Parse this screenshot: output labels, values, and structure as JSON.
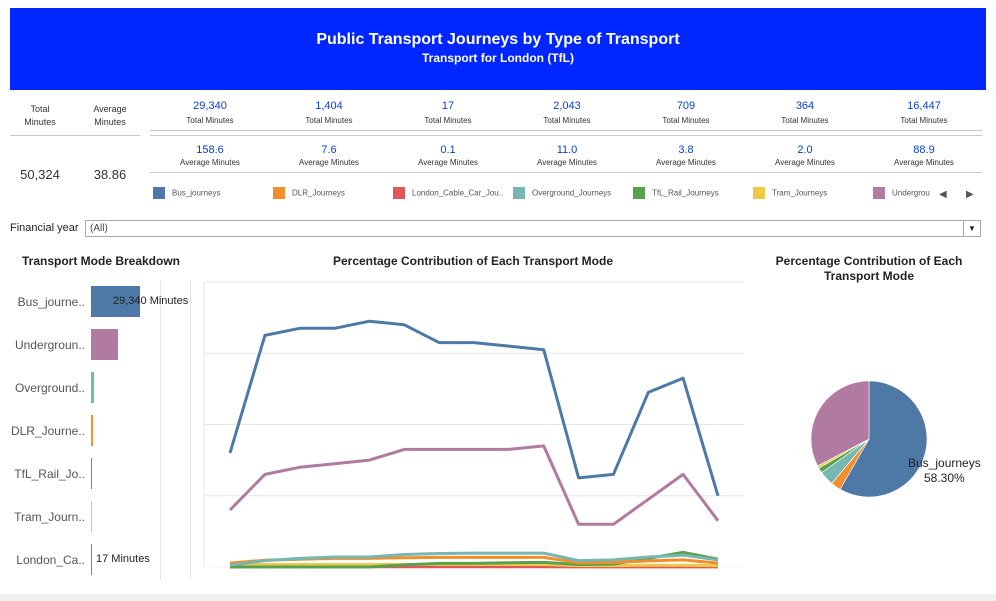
{
  "header": {
    "title": "Public Transport Journeys by Type of Transport",
    "subtitle": "Transport for London (TfL)"
  },
  "summary": {
    "total_label": "Total\nMinutes",
    "total_value": "50,324",
    "average_label": "Average\nMinutes",
    "average_value": "38.86"
  },
  "modes": [
    {
      "name": "Bus_journeys",
      "total": "29,340",
      "average": "158.6",
      "color": "#4e79a7"
    },
    {
      "name": "DLR_Journeys",
      "total": "1,404",
      "average": "7.6",
      "color": "#f28e2b"
    },
    {
      "name": "London_Cable_Car_Jou..",
      "total": "17",
      "average": "0.1",
      "color": "#e15759"
    },
    {
      "name": "Overground_Journeys",
      "total": "2,043",
      "average": "11.0",
      "color": "#76b7b2"
    },
    {
      "name": "TfL_Rail_Journeys",
      "total": "709",
      "average": "3.8",
      "color": "#59a14f"
    },
    {
      "name": "Tram_Journeys",
      "total": "364",
      "average": "2.0",
      "color": "#edc948"
    },
    {
      "name": "Undergrou",
      "total": "16,447",
      "average": "88.9",
      "color": "#b07aa1"
    }
  ],
  "metric_labels": {
    "total": "Total Minutes",
    "average": "Average Minutes"
  },
  "filter": {
    "label": "Financial year",
    "value": "(All)"
  },
  "bar_section": {
    "title": "Transport Mode Breakdown",
    "top_label": "29,340 Minutes",
    "bottom_label": "17 Minutes"
  },
  "line_section": {
    "title": "Percentage Contribution of Each Transport Mode"
  },
  "pie_section": {
    "title_line1": "Percentage Contribution of Each",
    "title_line2": "Transport Mode",
    "label_name": "Bus_journeys",
    "label_pct": "58.30%"
  },
  "chart_data": [
    {
      "type": "bar",
      "title": "Transport Mode Breakdown",
      "categories": [
        "Bus_journe..",
        "Undergroun..",
        "Overground..",
        "DLR_Journe..",
        "TfL_Rail_Jo..",
        "Tram_Journ..",
        "London_Ca.."
      ],
      "values": [
        29340,
        16447,
        2043,
        1404,
        709,
        364,
        17
      ],
      "colors": [
        "#4e79a7",
        "#b07aa1",
        "#76b7b2",
        "#f28e2b",
        "#59a14f",
        "#edc948",
        "#e15759"
      ],
      "data_labels": {
        "Bus_journe..": "29,340 Minutes",
        "London_Ca..": "17 Minutes"
      }
    },
    {
      "type": "line",
      "title": "Percentage Contribution of Each Transport Mode",
      "ylim": [
        0,
        80
      ],
      "grid": true,
      "x_count": 15,
      "series": [
        {
          "name": "Bus_journeys",
          "color": "#4e79a7",
          "values": [
            32,
            65,
            67,
            67,
            69,
            68,
            63,
            63,
            62,
            61,
            25,
            26,
            49,
            53,
            20
          ]
        },
        {
          "name": "Undergrou",
          "color": "#b07aa1",
          "values": [
            16,
            26,
            28,
            29,
            30,
            33,
            33,
            33,
            33,
            34,
            12,
            12,
            19,
            26,
            13
          ]
        },
        {
          "name": "Overground_Journeys",
          "color": "#76b7b2",
          "values": [
            0.5,
            1.8,
            2.4,
            2.8,
            2.8,
            3.5,
            3.8,
            3.9,
            3.9,
            3.9,
            1.8,
            2.0,
            2.8,
            3.3,
            2.0
          ]
        },
        {
          "name": "DLR_Journeys",
          "color": "#f28e2b",
          "values": [
            1.1,
            1.9,
            2.2,
            2.4,
            2.4,
            2.6,
            2.7,
            2.7,
            2.7,
            2.7,
            1.2,
            1.3,
            1.7,
            2.0,
            1.1
          ]
        },
        {
          "name": "TfL_Rail_Journeys",
          "color": "#59a14f",
          "values": [
            0,
            0,
            0,
            0,
            0,
            0.6,
            1.0,
            1.0,
            1.2,
            1.3,
            0.7,
            0.8,
            2.4,
            4.1,
            2.2
          ]
        },
        {
          "name": "Tram_Journeys",
          "color": "#edc948",
          "values": [
            0.6,
            0.7,
            0.7,
            0.7,
            0.7,
            0.7,
            0.7,
            0.7,
            0.7,
            0.7,
            0.4,
            0.4,
            0.5,
            0.5,
            0.4
          ]
        },
        {
          "name": "London_Cable_Car_Jou..",
          "color": "#e15759",
          "values": [
            0.02,
            0.05,
            0.05,
            0.05,
            0.05,
            0.05,
            0.05,
            0.05,
            0.05,
            0.05,
            0.02,
            0.02,
            0.03,
            0.03,
            0.02
          ]
        }
      ]
    },
    {
      "type": "pie",
      "title": "Percentage Contribution of Each Transport Mode",
      "slices": [
        {
          "name": "Bus_journeys",
          "value": 58.3,
          "color": "#4e79a7"
        },
        {
          "name": "DLR_Journeys",
          "value": 2.79,
          "color": "#f28e2b"
        },
        {
          "name": "London_Cable_Car_Jou..",
          "value": 0.03,
          "color": "#e15759"
        },
        {
          "name": "Overground_Journeys",
          "value": 4.06,
          "color": "#76b7b2"
        },
        {
          "name": "TfL_Rail_Journeys",
          "value": 1.41,
          "color": "#59a14f"
        },
        {
          "name": "Tram_Journeys",
          "value": 0.72,
          "color": "#edc948"
        },
        {
          "name": "Undergrou",
          "value": 32.68,
          "color": "#b07aa1"
        }
      ]
    }
  ]
}
